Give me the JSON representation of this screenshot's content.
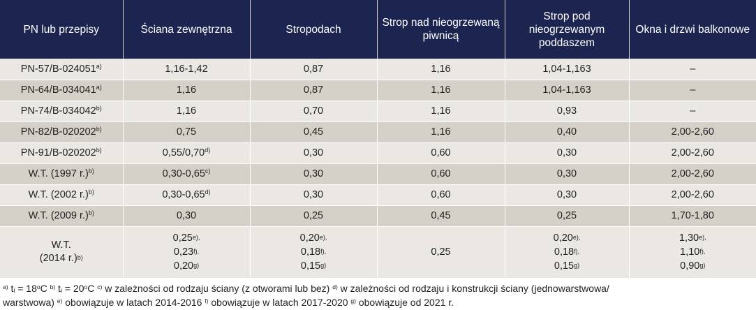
{
  "header": [
    "PN lub przepisy",
    "Ściana zewnętrzna",
    "Stropodach",
    "Strop nad nieogrzewaną piwnicą",
    "Strop pod nieogrzewanym poddaszem",
    "Okna i drzwi balkonowe"
  ],
  "rows": [
    {
      "std": "PN-57/B-024051",
      "sup": "a)",
      "c": [
        {
          "v": "1,16-1,42"
        },
        {
          "v": "0,87"
        },
        {
          "v": "1,16"
        },
        {
          "v": "1,04-1,163"
        },
        {
          "v": "–"
        }
      ]
    },
    {
      "std": "PN-64/B-034041",
      "sup": "a)",
      "c": [
        {
          "v": "1,16"
        },
        {
          "v": "0,87"
        },
        {
          "v": "1,16"
        },
        {
          "v": "1,04-1,163"
        },
        {
          "v": "–"
        }
      ]
    },
    {
      "std": "PN-74/B-034042",
      "sup": "b)",
      "c": [
        {
          "v": "1,16"
        },
        {
          "v": "0,70"
        },
        {
          "v": "1,16"
        },
        {
          "v": "0,93"
        },
        {
          "v": "–"
        }
      ]
    },
    {
      "std": "PN-82/B-020202",
      "sup": "b)",
      "c": [
        {
          "v": "0,75"
        },
        {
          "v": "0,45"
        },
        {
          "v": "1,16"
        },
        {
          "v": "0,40"
        },
        {
          "v": "2,00-2,60"
        }
      ]
    },
    {
      "std": "PN-91/B-020202",
      "sup": "b)",
      "c": [
        {
          "v": "0,55/0,70",
          "s": "d)"
        },
        {
          "v": "0,30"
        },
        {
          "v": "0,60"
        },
        {
          "v": "0,30"
        },
        {
          "v": "2,00-2,60"
        }
      ]
    },
    {
      "std": "W.T. (1997 r.)",
      "sup": "b)",
      "c": [
        {
          "v": "0,30-0,65",
          "s": "c)"
        },
        {
          "v": "0,30"
        },
        {
          "v": "0,60"
        },
        {
          "v": "0,30"
        },
        {
          "v": "2,00-2,60"
        }
      ]
    },
    {
      "std": "W.T. (2002 r.)",
      "sup": "b)",
      "c": [
        {
          "v": "0,30-0,65",
          "s": "d)"
        },
        {
          "v": "0,30"
        },
        {
          "v": "0,60"
        },
        {
          "v": "0,30"
        },
        {
          "v": "2,00-2,60"
        }
      ]
    },
    {
      "std": "W.T. (2009 r.)",
      "sup": "b)",
      "c": [
        {
          "v": "0,30"
        },
        {
          "v": "0,25"
        },
        {
          "v": "0,45"
        },
        {
          "v": "0,25"
        },
        {
          "v": "1,70-1,80"
        }
      ]
    }
  ],
  "last_row": {
    "std_line1": "W.T.",
    "std_line2": "(2014 r.)",
    "sup": "b)",
    "wall": [
      [
        "0,25",
        "e),"
      ],
      [
        "0,23",
        "f),"
      ],
      [
        "0,20",
        "g)"
      ]
    ],
    "roof": [
      [
        "0,20",
        "e),"
      ],
      [
        "0,18",
        "f),"
      ],
      [
        "0,15",
        "g)"
      ]
    ],
    "basement": "0,25",
    "attic": [
      [
        "0,20",
        "e),"
      ],
      [
        "0,18",
        "f),"
      ],
      [
        "0,15",
        "g)"
      ]
    ],
    "windows": [
      [
        "1,30",
        "e),"
      ],
      [
        "1,10",
        "f),"
      ],
      [
        "0,90",
        "g)"
      ]
    ]
  },
  "footnotes": {
    "a_mark": "a)",
    "a_text_1": " t",
    "a_sub": "i",
    "a_text_2": " = 18",
    "a_deg": "o",
    "a_text_3": "C ",
    "b_mark": "b)",
    "b_text_1": " t",
    "b_sub": "i",
    "b_text_2": " = 20",
    "b_deg": "o",
    "b_text_3": "C ",
    "c_mark": "c)",
    "c_text": " w zależności od rodzaju ściany (z otworami lub bez) ",
    "d_mark": "d)",
    "d_text": " w zależności od rodzaju i konstrukcji ściany (jednowarstwowa/",
    "d_text_2": "warstwowa) ",
    "e_mark": "e)",
    "e_text": " obowiązuje w latach 2014-2016 ",
    "f_mark": "f)",
    "f_text": " obowiązuje w latach 2017-2020 ",
    "g_mark": "g)",
    "g_text": " obowiązuje od 2021 r."
  }
}
